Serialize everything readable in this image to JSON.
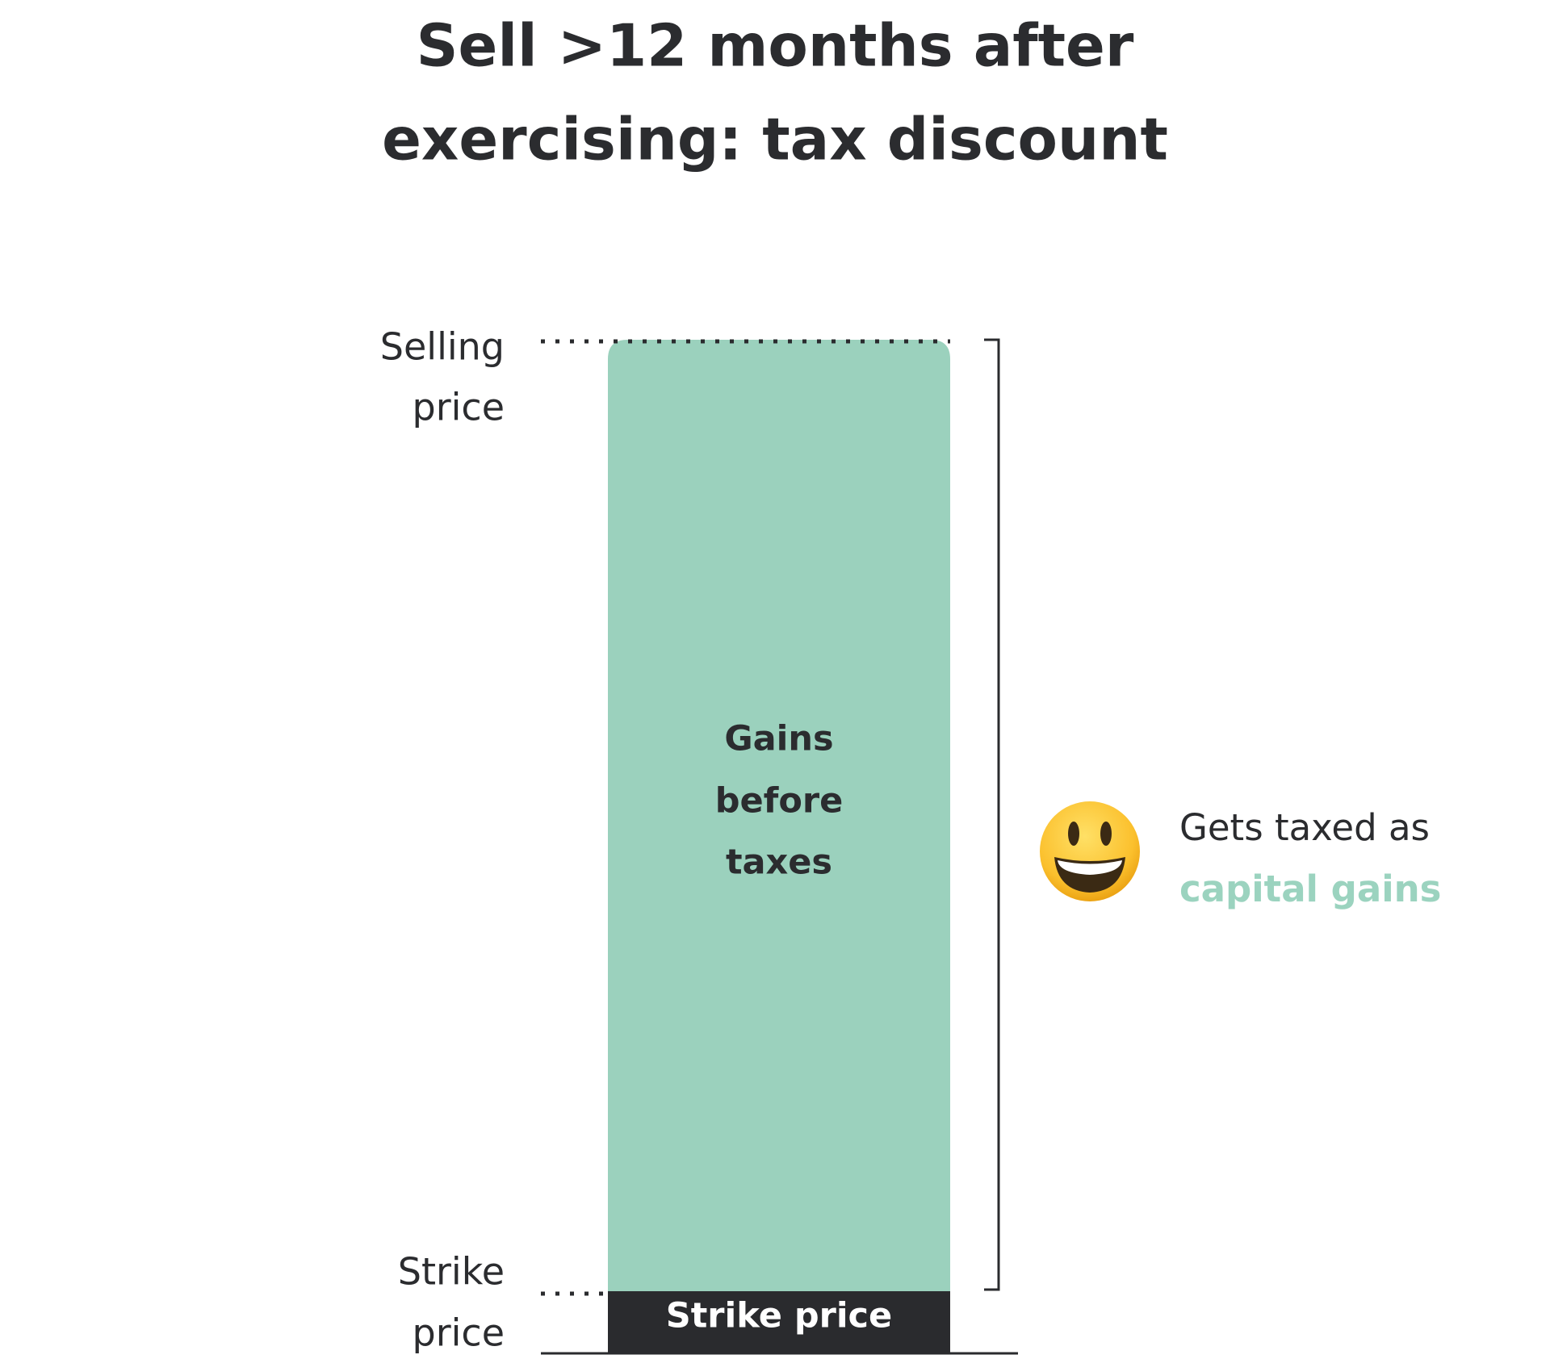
{
  "title": {
    "lines": [
      "Sell >12 months after",
      "exercising: tax discount"
    ]
  },
  "levels": {
    "selling_price": [
      "Selling",
      "price"
    ],
    "strike_price": [
      "Strike",
      "price"
    ]
  },
  "bar": {
    "gains_label": [
      "Gains",
      "before",
      "taxes"
    ],
    "base_label": "Strike price"
  },
  "note": {
    "text": "Gets taxed as",
    "highlight": "capital gains"
  }
}
